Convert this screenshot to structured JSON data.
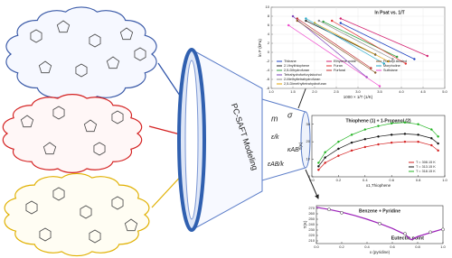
{
  "funnel": {
    "title": "PC-SAFT Modeling",
    "parameters": [
      "m",
      "σ",
      "ε/k",
      "κAB",
      "εAB/k"
    ]
  },
  "chart_data": [
    {
      "type": "line",
      "title": "ln Psat vs. 1/T",
      "x_label": "1000 × 1/T (1/K)",
      "y_label": "ln P (kPa)",
      "xlim": [
        1.0,
        5.0
      ],
      "ylim": [
        -8,
        10
      ],
      "xticks": [
        {
          "value": 1.0,
          "label": "1.0"
        },
        {
          "value": 1.5,
          "label": "1.5"
        },
        {
          "value": 2.0,
          "label": "2.0"
        },
        {
          "value": 2.5,
          "label": "2.5"
        },
        {
          "value": 3.0,
          "label": "3.0"
        },
        {
          "value": 3.5,
          "label": "3.5"
        },
        {
          "value": 4.0,
          "label": "4.0"
        },
        {
          "value": 4.5,
          "label": "4.5"
        },
        {
          "value": 5.0,
          "label": "5.0"
        }
      ],
      "yticks": [
        -8,
        -6,
        -4,
        -2,
        0,
        2,
        4,
        6,
        8,
        10
      ],
      "grid": true,
      "series": [
        {
          "name": "Thiirane",
          "color": "#1a3fc0",
          "mode": "lines+markers",
          "x": [
            2.6,
            4.3
          ],
          "values": [
            6.5,
            -1.5
          ]
        },
        {
          "name": "2-Vinylthiophene",
          "color": "#2a2a2a",
          "mode": "lines+markers",
          "x": [
            1.8,
            3.4
          ],
          "values": [
            7.0,
            -0.5
          ]
        },
        {
          "name": "2,5-Dihydrofuran",
          "color": "#2e9e3e",
          "mode": "lines+markers",
          "x": [
            2.2,
            3.9
          ],
          "values": [
            6.8,
            -1.0
          ]
        },
        {
          "name": "Tetrahydrofurfurylalcohol",
          "color": "#7a3fb8",
          "mode": "lines+markers",
          "x": [
            1.5,
            3.2
          ],
          "values": [
            8.0,
            -5.5
          ]
        },
        {
          "name": "2-Methyltetrahydrofuran",
          "color": "#8a8a8a",
          "mode": "lines+markers",
          "x": [
            2.1,
            3.8
          ],
          "values": [
            7.0,
            -1.5
          ]
        },
        {
          "name": "2,5-Dimethyltetrahydrofuran",
          "color": "#e0a000",
          "mode": "lines+markers",
          "x": [
            2.0,
            3.7
          ],
          "values": [
            6.5,
            -2.0
          ]
        },
        {
          "name": "Ethylene oxide",
          "color": "#d21e6e",
          "mode": "lines+markers",
          "x": [
            2.6,
            4.6
          ],
          "values": [
            7.5,
            -0.8
          ]
        },
        {
          "name": "Furan",
          "color": "#e23030",
          "mode": "lines+markers",
          "x": [
            2.4,
            4.1
          ],
          "values": [
            7.0,
            -2.5
          ]
        },
        {
          "name": "Furfural",
          "color": "#c03030",
          "mode": "lines+markers",
          "x": [
            1.6,
            3.3
          ],
          "values": [
            7.5,
            -3.5
          ]
        },
        {
          "name": "Furfuryl Alcohol",
          "color": "#8b5a2b",
          "mode": "lines+markers",
          "x": [
            1.6,
            3.4
          ],
          "values": [
            7.0,
            -4.5
          ]
        },
        {
          "name": "Morpholine",
          "color": "#20a8c8",
          "mode": "lines+markers",
          "x": [
            1.8,
            3.6
          ],
          "values": [
            7.5,
            -2.5
          ]
        },
        {
          "name": "Sulfolane",
          "color": "#ee44cc",
          "mode": "lines+markers",
          "x": [
            1.4,
            3.5
          ],
          "values": [
            6.0,
            -7.5
          ]
        }
      ]
    },
    {
      "type": "line",
      "title": "Thiophene (1) + 1-Propanol (2)",
      "x_label": "x1,Thiophene",
      "y_label": "T(K)",
      "xlim": [
        0.0,
        1.0
      ],
      "ylim": [
        0,
        35
      ],
      "xticks": [
        {
          "value": 0.0,
          "label": "0.0"
        },
        {
          "value": 0.2,
          "label": "0.2"
        },
        {
          "value": 0.4,
          "label": "0.4"
        },
        {
          "value": 0.6,
          "label": "0.6"
        },
        {
          "value": 0.8,
          "label": "0.8"
        },
        {
          "value": 1.0,
          "label": "1.0"
        }
      ],
      "yticks": [
        0,
        10,
        20,
        30
      ],
      "grid": false,
      "x": [
        0.05,
        0.1,
        0.2,
        0.3,
        0.4,
        0.5,
        0.6,
        0.7,
        0.8,
        0.9,
        0.95
      ],
      "series": [
        {
          "name": "T = 308.15 K",
          "color": "#d42020",
          "mode": "lines+markers",
          "values": [
            4,
            8,
            12,
            15,
            17,
            18.5,
            19.5,
            20,
            20,
            18,
            15
          ]
        },
        {
          "name": "T = 313.15 K",
          "color": "#111111",
          "mode": "lines+markers",
          "values": [
            6,
            11,
            16,
            19.5,
            21.5,
            23,
            24,
            24.5,
            24,
            22,
            19
          ]
        },
        {
          "name": "T = 318.15 K",
          "color": "#22b422",
          "mode": "lines+markers",
          "values": [
            8,
            14,
            20,
            24,
            27,
            29,
            30.5,
            31,
            30,
            27,
            23
          ]
        }
      ]
    },
    {
      "type": "line",
      "title": "Benzene + Pyridine",
      "annotation": "Eutectic point",
      "x_label": "x (pyridine)",
      "y_label": "T(K)",
      "xlim": [
        0.0,
        1.0
      ],
      "ylim": [
        205,
        275
      ],
      "xticks": [
        {
          "value": 0.0,
          "label": "0.0"
        },
        {
          "value": 0.2,
          "label": "0.2"
        },
        {
          "value": 0.4,
          "label": "0.4"
        },
        {
          "value": 0.6,
          "label": "0.6"
        },
        {
          "value": 0.8,
          "label": "0.8"
        },
        {
          "value": 1.0,
          "label": "1.0"
        }
      ],
      "yticks": [
        210,
        220,
        230,
        240,
        250,
        260,
        270
      ],
      "grid": false,
      "series": [
        {
          "color": "#9b1fb8",
          "mode": "lines",
          "x": [
            0.0,
            0.1,
            0.2,
            0.3,
            0.4,
            0.5,
            0.6,
            0.7,
            0.75,
            0.8,
            0.9,
            1.0
          ],
          "values": [
            272,
            268,
            263,
            257,
            250,
            242,
            233,
            222,
            212,
            218,
            225,
            232
          ]
        },
        {
          "color": "#333333",
          "mode": "markers",
          "x": [
            0.1,
            0.2,
            0.5,
            0.7,
            0.9,
            1.0
          ],
          "values": [
            268,
            262,
            242,
            223,
            226,
            231
          ]
        }
      ]
    }
  ]
}
